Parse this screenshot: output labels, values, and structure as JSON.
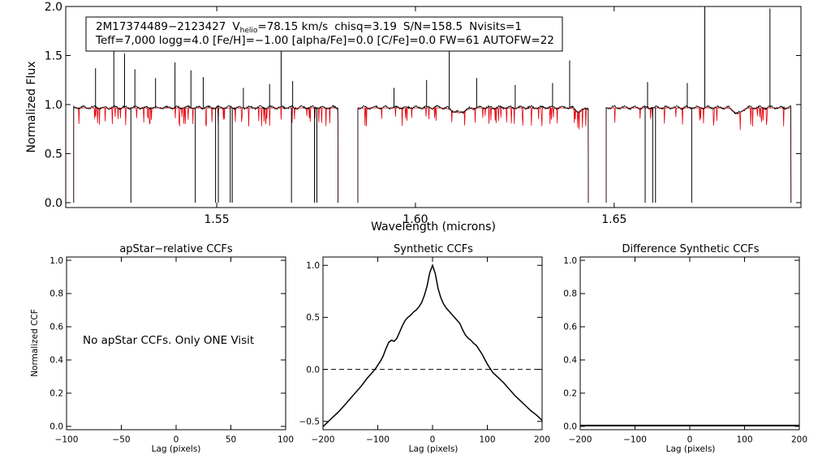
{
  "chart_data": [
    {
      "id": "spectrum",
      "type": "line",
      "xlabel": "Wavelength (microns)",
      "ylabel": "Normalized Flux",
      "xlim": [
        1.512,
        1.697
      ],
      "ylim": [
        -0.05,
        2.0
      ],
      "xticks": [
        {
          "value": 1.55,
          "label": "1.55"
        },
        {
          "value": 1.6,
          "label": "1.60"
        },
        {
          "value": 1.65,
          "label": "1.65"
        }
      ],
      "yticks": [
        {
          "value": 0.0,
          "label": "0.0"
        },
        {
          "value": 0.5,
          "label": "0.5"
        },
        {
          "value": 1.0,
          "label": "1.0"
        },
        {
          "value": 1.5,
          "label": "1.5"
        },
        {
          "value": 2.0,
          "label": "2.0"
        }
      ],
      "info": {
        "star_id": "2M17374489−2123427",
        "v_label": "V",
        "v_subscript": "helio",
        "v_value": "=78.15 km/s",
        "chisq": "chisq=3.19",
        "snr": "S/N=158.5",
        "nvisits": "Nvisits=1",
        "params": "Teff=7,000 logg=4.0 [Fe/H]=−1.00 [alpha/Fe]=0.0 [C/Fe]=0.0 FW=61 AUTOFW=22"
      },
      "chips": [
        {
          "start": 1.514,
          "end": 1.5805
        },
        {
          "start": 1.5855,
          "end": 1.6435
        },
        {
          "start": 1.648,
          "end": 1.6945
        }
      ],
      "series": [
        {
          "name": "observed",
          "color": "#000000"
        },
        {
          "name": "synthetic",
          "color": "#e8000b"
        }
      ],
      "emission_lines": [
        {
          "x": 1.5195,
          "peak": 1.37
        },
        {
          "x": 1.5241,
          "peak": 1.66
        },
        {
          "x": 1.5268,
          "peak": 1.52
        },
        {
          "x": 1.5294,
          "peak": 1.36
        },
        {
          "x": 1.5346,
          "peak": 1.27
        },
        {
          "x": 1.5395,
          "peak": 1.43
        },
        {
          "x": 1.5435,
          "peak": 1.35
        },
        {
          "x": 1.5466,
          "peak": 1.28
        },
        {
          "x": 1.5567,
          "peak": 1.17
        },
        {
          "x": 1.5633,
          "peak": 1.21
        },
        {
          "x": 1.5662,
          "peak": 1.86
        },
        {
          "x": 1.5691,
          "peak": 1.24
        },
        {
          "x": 1.5946,
          "peak": 1.17
        },
        {
          "x": 1.6028,
          "peak": 1.25
        },
        {
          "x": 1.6085,
          "peak": 1.73
        },
        {
          "x": 1.6154,
          "peak": 1.27
        },
        {
          "x": 1.6251,
          "peak": 1.2
        },
        {
          "x": 1.6345,
          "peak": 1.22
        },
        {
          "x": 1.6388,
          "peak": 1.45
        },
        {
          "x": 1.6584,
          "peak": 1.23
        },
        {
          "x": 1.6684,
          "peak": 1.22
        },
        {
          "x": 1.6728,
          "peak": 2.0
        },
        {
          "x": 1.6892,
          "peak": 1.98
        }
      ],
      "absorption_dips": [
        {
          "x": 1.5284,
          "min": 0.0
        },
        {
          "x": 1.5446,
          "min": 0.0
        },
        {
          "x": 1.5497,
          "min": 0.0
        },
        {
          "x": 1.5504,
          "min": 0.0
        },
        {
          "x": 1.5534,
          "min": 0.0
        },
        {
          "x": 1.5539,
          "min": 0.0
        },
        {
          "x": 1.5688,
          "min": 0.0
        },
        {
          "x": 1.5746,
          "min": 0.0
        },
        {
          "x": 1.5752,
          "min": 0.0
        },
        {
          "x": 1.6578,
          "min": 0.0
        },
        {
          "x": 1.6597,
          "min": 0.0
        },
        {
          "x": 1.6604,
          "min": 0.0
        },
        {
          "x": 1.6695,
          "min": 0.0
        }
      ]
    },
    {
      "id": "apstar-ccf",
      "type": "line",
      "title": "apStar−relative CCFs",
      "xlabel": "Lag (pixels)",
      "ylabel": "Normalized CCF",
      "xlim": [
        -100,
        100
      ],
      "ylim": [
        -0.02,
        1.02
      ],
      "xticks": [
        {
          "value": -100,
          "label": "−100"
        },
        {
          "value": -50,
          "label": "−50"
        },
        {
          "value": 0,
          "label": "0"
        },
        {
          "value": 50,
          "label": "50"
        },
        {
          "value": 100,
          "label": "100"
        }
      ],
      "yticks": [
        {
          "value": 0.0,
          "label": "0.0"
        },
        {
          "value": 0.2,
          "label": "0.2"
        },
        {
          "value": 0.4,
          "label": "0.4"
        },
        {
          "value": 0.6,
          "label": "0.6"
        },
        {
          "value": 0.8,
          "label": "0.8"
        },
        {
          "value": 1.0,
          "label": "1.0"
        }
      ],
      "annotation": "No apStar CCFs.  Only ONE Visit",
      "series": []
    },
    {
      "id": "synthetic-ccf",
      "type": "line",
      "title": "Synthetic CCFs",
      "xlabel": "Lag (pixels)",
      "ylabel": "",
      "xlim": [
        -200,
        200
      ],
      "ylim": [
        -0.58,
        1.08
      ],
      "xticks": [
        {
          "value": -200,
          "label": "−200"
        },
        {
          "value": -100,
          "label": "−100"
        },
        {
          "value": 0,
          "label": "0"
        },
        {
          "value": 100,
          "label": "100"
        },
        {
          "value": 200,
          "label": "200"
        }
      ],
      "yticks": [
        {
          "value": -0.5,
          "label": "−0.5"
        },
        {
          "value": 0.0,
          "label": "0.0"
        },
        {
          "value": 0.5,
          "label": "0.5"
        },
        {
          "value": 1.0,
          "label": "1.0"
        }
      ],
      "reference_line": {
        "y": 0.0,
        "style": "dashed"
      },
      "series": [
        {
          "name": "synthetic-ccf",
          "color": "#000000",
          "x": [
            -200,
            -190,
            -180,
            -170,
            -160,
            -150,
            -140,
            -130,
            -120,
            -110,
            -105,
            -100,
            -95,
            -90,
            -85,
            -80,
            -75,
            -70,
            -65,
            -60,
            -55,
            -50,
            -45,
            -40,
            -35,
            -30,
            -25,
            -20,
            -15,
            -10,
            -5,
            0,
            5,
            10,
            15,
            20,
            25,
            30,
            35,
            40,
            45,
            50,
            55,
            60,
            65,
            70,
            75,
            80,
            85,
            90,
            95,
            100,
            105,
            110,
            120,
            130,
            140,
            150,
            160,
            170,
            180,
            190,
            200
          ],
          "y": [
            -0.55,
            -0.5,
            -0.45,
            -0.4,
            -0.34,
            -0.28,
            -0.22,
            -0.16,
            -0.09,
            -0.03,
            0.0,
            0.04,
            0.08,
            0.13,
            0.2,
            0.26,
            0.28,
            0.27,
            0.3,
            0.36,
            0.42,
            0.47,
            0.5,
            0.52,
            0.55,
            0.57,
            0.6,
            0.64,
            0.71,
            0.8,
            0.93,
            1.0,
            0.92,
            0.78,
            0.69,
            0.63,
            0.59,
            0.56,
            0.53,
            0.5,
            0.47,
            0.44,
            0.38,
            0.33,
            0.3,
            0.28,
            0.25,
            0.23,
            0.19,
            0.15,
            0.1,
            0.05,
            0.01,
            -0.03,
            -0.08,
            -0.13,
            -0.19,
            -0.25,
            -0.3,
            -0.35,
            -0.4,
            -0.44,
            -0.49
          ]
        }
      ]
    },
    {
      "id": "difference-ccf",
      "type": "line",
      "title": "Difference Synthetic CCFs",
      "xlabel": "Lag (pixels)",
      "ylabel": "",
      "xlim": [
        -200,
        200
      ],
      "ylim": [
        -0.02,
        1.02
      ],
      "xticks": [
        {
          "value": -200,
          "label": "−200"
        },
        {
          "value": -100,
          "label": "−100"
        },
        {
          "value": 0,
          "label": "0"
        },
        {
          "value": 100,
          "label": "100"
        },
        {
          "value": 200,
          "label": "200"
        }
      ],
      "yticks": [
        {
          "value": 0.0,
          "label": "0.0"
        },
        {
          "value": 0.2,
          "label": "0.2"
        },
        {
          "value": 0.4,
          "label": "0.4"
        },
        {
          "value": 0.6,
          "label": "0.6"
        },
        {
          "value": 0.8,
          "label": "0.8"
        },
        {
          "value": 1.0,
          "label": "1.0"
        }
      ],
      "series": [
        {
          "name": "difference",
          "color": "#000000",
          "x": [
            -200,
            200
          ],
          "y": [
            0.0,
            0.0
          ]
        }
      ]
    }
  ]
}
